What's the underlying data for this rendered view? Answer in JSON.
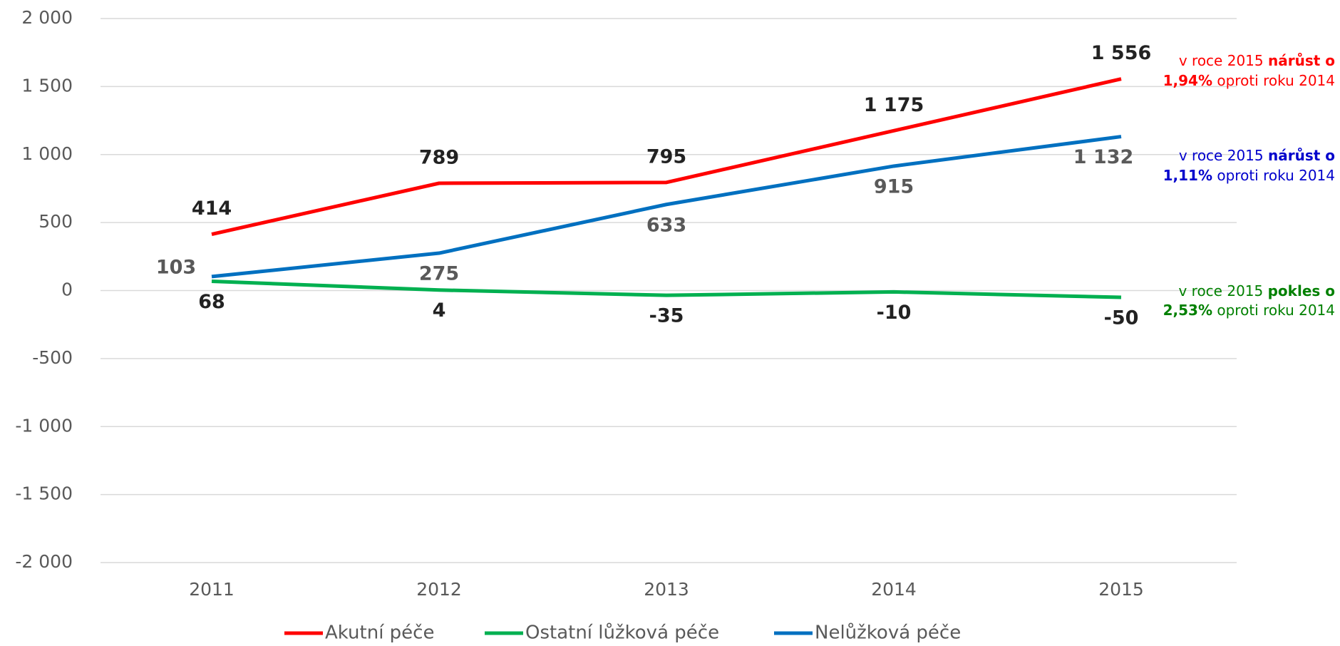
{
  "chart_data": {
    "type": "line",
    "categories": [
      "2011",
      "2012",
      "2013",
      "2014",
      "2015"
    ],
    "series": [
      {
        "name": "Akutní péče",
        "color": "#ff0000",
        "values": [
          414,
          789,
          795,
          1175,
          1556
        ],
        "value_labels": [
          "414",
          "789",
          "795",
          "1 175",
          "1 556"
        ]
      },
      {
        "name": "Ostatní lůžková péče",
        "color": "#00b050",
        "values": [
          68,
          4,
          -35,
          -10,
          -50
        ],
        "value_labels": [
          "68",
          "4",
          "-35",
          "-10",
          "-50"
        ]
      },
      {
        "name": "Nelůžková péče",
        "color": "#0070c0",
        "values": [
          103,
          275,
          633,
          915,
          1132
        ],
        "value_labels": [
          "103",
          "275",
          "633",
          "915",
          "1 132"
        ]
      }
    ],
    "ylim": [
      -2000,
      2000
    ],
    "yticks": [
      {
        "value": -2000,
        "label": "-2 000"
      },
      {
        "value": -1500,
        "label": "-1 500"
      },
      {
        "value": -1000,
        "label": "-1 000"
      },
      -500,
      0,
      500,
      {
        "value": 1000,
        "label": "1 000"
      },
      {
        "value": 1500,
        "label": "1 500"
      },
      {
        "value": 2000,
        "label": "2 000"
      }
    ],
    "negative_tick_color": "#ff0000",
    "grid": true,
    "legend": "bottom",
    "annotations": [
      {
        "color": "#ff0000",
        "lines": [
          [
            {
              "text": "v roce 2015 ",
              "bold": false
            },
            {
              "text": "nárůst o",
              "bold": true
            }
          ],
          [
            {
              "text": "1,94%",
              "bold": true
            },
            {
              "text": " oproti roku 2014",
              "bold": false
            }
          ]
        ]
      },
      {
        "color": "#0000cc",
        "lines": [
          [
            {
              "text": "v roce 2015 ",
              "bold": false
            },
            {
              "text": "nárůst o",
              "bold": true
            }
          ],
          [
            {
              "text": "1,11%",
              "bold": true
            },
            {
              "text": " oproti roku 2014",
              "bold": false
            }
          ]
        ]
      },
      {
        "color": "#008000",
        "lines": [
          [
            {
              "text": "v roce 2015 ",
              "bold": false
            },
            {
              "text": "pokles o",
              "bold": true
            }
          ],
          [
            {
              "text": "2,53%",
              "bold": true
            },
            {
              "text": " oproti roku 2014",
              "bold": false
            }
          ]
        ]
      }
    ]
  }
}
